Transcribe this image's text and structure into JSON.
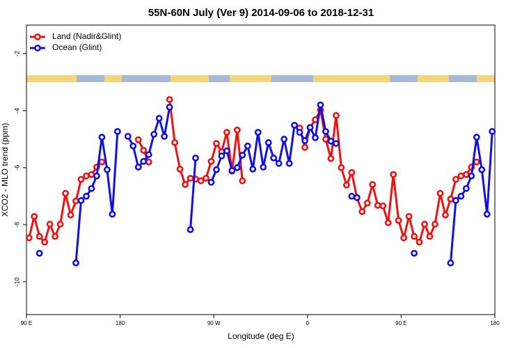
{
  "chart_data": {
    "type": "line",
    "title": "55N-60N July (Ver 9)   2014-09-06 to 2018-12-31",
    "x_label": "Longitude (deg E)",
    "y_label": "XCO2 - MLO trend (ppm)",
    "x": [
      92.5,
      97.5,
      102.5,
      107.5,
      112.5,
      117.5,
      122.5,
      127.5,
      132.5,
      137.5,
      142.5,
      147.5,
      152.5,
      157.5,
      162.5,
      167.5,
      172.5,
      177.5,
      182.5,
      187.5,
      192.5,
      197.5,
      202.5,
      207.5,
      212.5,
      217.5,
      222.5,
      227.5,
      232.5,
      237.5,
      242.5,
      247.5,
      252.5,
      257.5,
      262.5,
      267.5,
      272.5,
      277.5,
      282.5,
      287.5,
      292.5,
      297.5,
      302.5,
      307.5,
      312.5,
      317.5,
      322.5,
      327.5,
      332.5,
      337.5,
      342.5,
      347.5,
      352.5,
      357.5,
      362.5,
      367.5,
      372.5,
      377.5,
      382.5,
      387.5,
      392.5,
      397.5,
      402.5,
      407.5,
      412.5,
      417.5,
      422.5,
      427.5,
      432.5,
      437.5,
      442.5,
      447.5,
      452.5,
      457.5,
      462.5,
      467.5,
      472.5,
      477.5,
      482.5,
      487.5,
      492.5,
      497.5,
      502.5,
      507.5,
      512.5,
      517.5,
      522.5,
      527.5,
      532.5,
      537.5
    ],
    "series": [
      {
        "name": "Land (Nadir&Glint)",
        "color": "#ee1111",
        "values": [
          -8.46,
          -7.71,
          -8.41,
          -8.61,
          -7.98,
          -8.41,
          -7.98,
          -6.9,
          -7.66,
          -7.17,
          -6.41,
          -6.29,
          -6.24,
          -5.98,
          -5.8,
          null,
          null,
          null,
          null,
          null,
          null,
          -5.02,
          -5.39,
          -5.8,
          null,
          null,
          null,
          -3.61,
          -5.12,
          -6.05,
          -6.59,
          -6.37,
          -6.4,
          -6.46,
          -6.37,
          -5.78,
          -5.15,
          -5.44,
          -4.76,
          -6.12,
          -4.68,
          -6.46,
          null,
          null,
          null,
          null,
          null,
          null,
          null,
          null,
          null,
          null,
          -4.61,
          -5.29,
          -4.6,
          -4.32,
          -3.98,
          -5.0,
          -5.68,
          -4.17,
          -6.0,
          -6.61,
          -6.17,
          -7.05,
          -7.54,
          -7.24,
          -6.59,
          -7.32,
          -7.34,
          -7.93,
          -6.24,
          -7.85,
          -8.46,
          -7.71,
          -8.41,
          -8.61,
          -7.98,
          -8.41,
          -7.98,
          -6.9,
          -7.66,
          -7.1,
          -6.41,
          -6.29,
          -6.24,
          -5.98,
          -5.8,
          null,
          null,
          null
        ]
      },
      {
        "name": "Ocean (Glint)",
        "color": "#1111dd",
        "values": [
          null,
          null,
          -9.0,
          null,
          null,
          null,
          null,
          null,
          null,
          -9.34,
          -7.15,
          -7.0,
          -6.73,
          -6.29,
          -4.93,
          -6.07,
          -7.63,
          -4.73,
          null,
          -4.9,
          -5.24,
          -5.98,
          -5.78,
          -5.54,
          -4.83,
          -4.27,
          -4.9,
          -3.88,
          null,
          null,
          null,
          -8.17,
          -5.66,
          null,
          null,
          -6.51,
          -6.07,
          -5.59,
          -5.41,
          -6.1,
          -6.0,
          -5.56,
          -5.24,
          -6.05,
          -4.76,
          -5.98,
          -5.12,
          -5.66,
          -5.85,
          -5.0,
          -5.85,
          -4.51,
          -4.76,
          -5.05,
          -4.59,
          -4.95,
          -3.8,
          -4.73,
          -5.07,
          -5.15,
          null,
          null,
          -7.0,
          -7.05,
          null,
          null,
          null,
          null,
          null,
          null,
          null,
          null,
          null,
          null,
          -9.0,
          null,
          null,
          null,
          null,
          null,
          null,
          -9.34,
          -7.15,
          -7.0,
          -6.73,
          -6.29,
          -4.93,
          -6.07,
          -7.63,
          -4.73
        ]
      }
    ],
    "xlim": [
      90,
      540
    ],
    "xticks": [
      {
        "value": 90,
        "label": "90 E"
      },
      180,
      {
        "value": 270,
        "label": "90 W"
      },
      {
        "value": 360,
        "label": "0"
      },
      {
        "value": 450,
        "label": "90 E"
      },
      {
        "value": 540,
        "label": "180"
      }
    ],
    "ylim": [
      -11.15,
      -1.0
    ],
    "yticks": [
      -10,
      -8,
      -6,
      -4,
      -2
    ],
    "legend": "top-left"
  }
}
